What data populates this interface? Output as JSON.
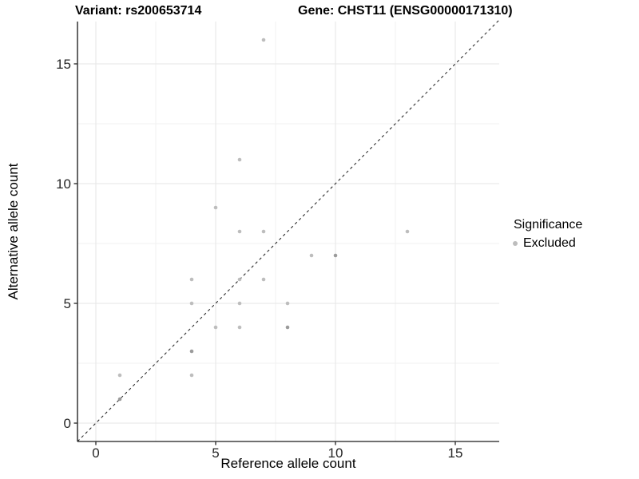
{
  "titles": {
    "variant": "Variant: rs200653714",
    "gene": "Gene: CHST11 (ENSG00000171310)"
  },
  "legend": {
    "title": "Significance",
    "items": [
      {
        "label": "Excluded",
        "color": "#bdbdbd"
      }
    ]
  },
  "colors": {
    "point": "#bdbdbd",
    "point_overlap": "#9b9b9b",
    "grid_major": "#e6e6e6",
    "grid_minor": "#f2f2f2",
    "axis_line": "#404040",
    "tick_mark": "#333333",
    "tick_text": "#262626",
    "reference_line": "#1a1a1a"
  },
  "chart_data": {
    "type": "scatter",
    "title_left": "Variant: rs200653714",
    "title_right": "Gene: CHST11 (ENSG00000171310)",
    "xlabel": "Reference allele count",
    "ylabel": "Alternative allele count",
    "xlim": [
      -0.8,
      16.8
    ],
    "ylim": [
      -0.8,
      16.8
    ],
    "x_major_ticks": [
      0,
      5,
      10,
      15
    ],
    "y_major_ticks": [
      0,
      5,
      10,
      15
    ],
    "x_minor_ticks": [
      2.5,
      7.5,
      12.5
    ],
    "y_minor_ticks": [
      2.5,
      7.5,
      12.5
    ],
    "grid": true,
    "legend_position": "right",
    "reference_line": {
      "type": "identity y=x",
      "style": "dashed"
    },
    "series": [
      {
        "name": "Excluded",
        "points": [
          {
            "x": 7,
            "y": 16
          },
          {
            "x": 6,
            "y": 11
          },
          {
            "x": 5,
            "y": 9
          },
          {
            "x": 6,
            "y": 8
          },
          {
            "x": 7,
            "y": 8
          },
          {
            "x": 13,
            "y": 8
          },
          {
            "x": 9,
            "y": 7
          },
          {
            "x": 10,
            "y": 7,
            "overlap": true
          },
          {
            "x": 4,
            "y": 6
          },
          {
            "x": 6,
            "y": 6
          },
          {
            "x": 7,
            "y": 6
          },
          {
            "x": 4,
            "y": 5
          },
          {
            "x": 6,
            "y": 5
          },
          {
            "x": 8,
            "y": 5
          },
          {
            "x": 5,
            "y": 4
          },
          {
            "x": 6,
            "y": 4
          },
          {
            "x": 8,
            "y": 4,
            "overlap": true
          },
          {
            "x": 4,
            "y": 3,
            "overlap": true
          },
          {
            "x": 1,
            "y": 2
          },
          {
            "x": 4,
            "y": 2
          },
          {
            "x": 1,
            "y": 1,
            "overlap": true
          }
        ]
      }
    ]
  }
}
